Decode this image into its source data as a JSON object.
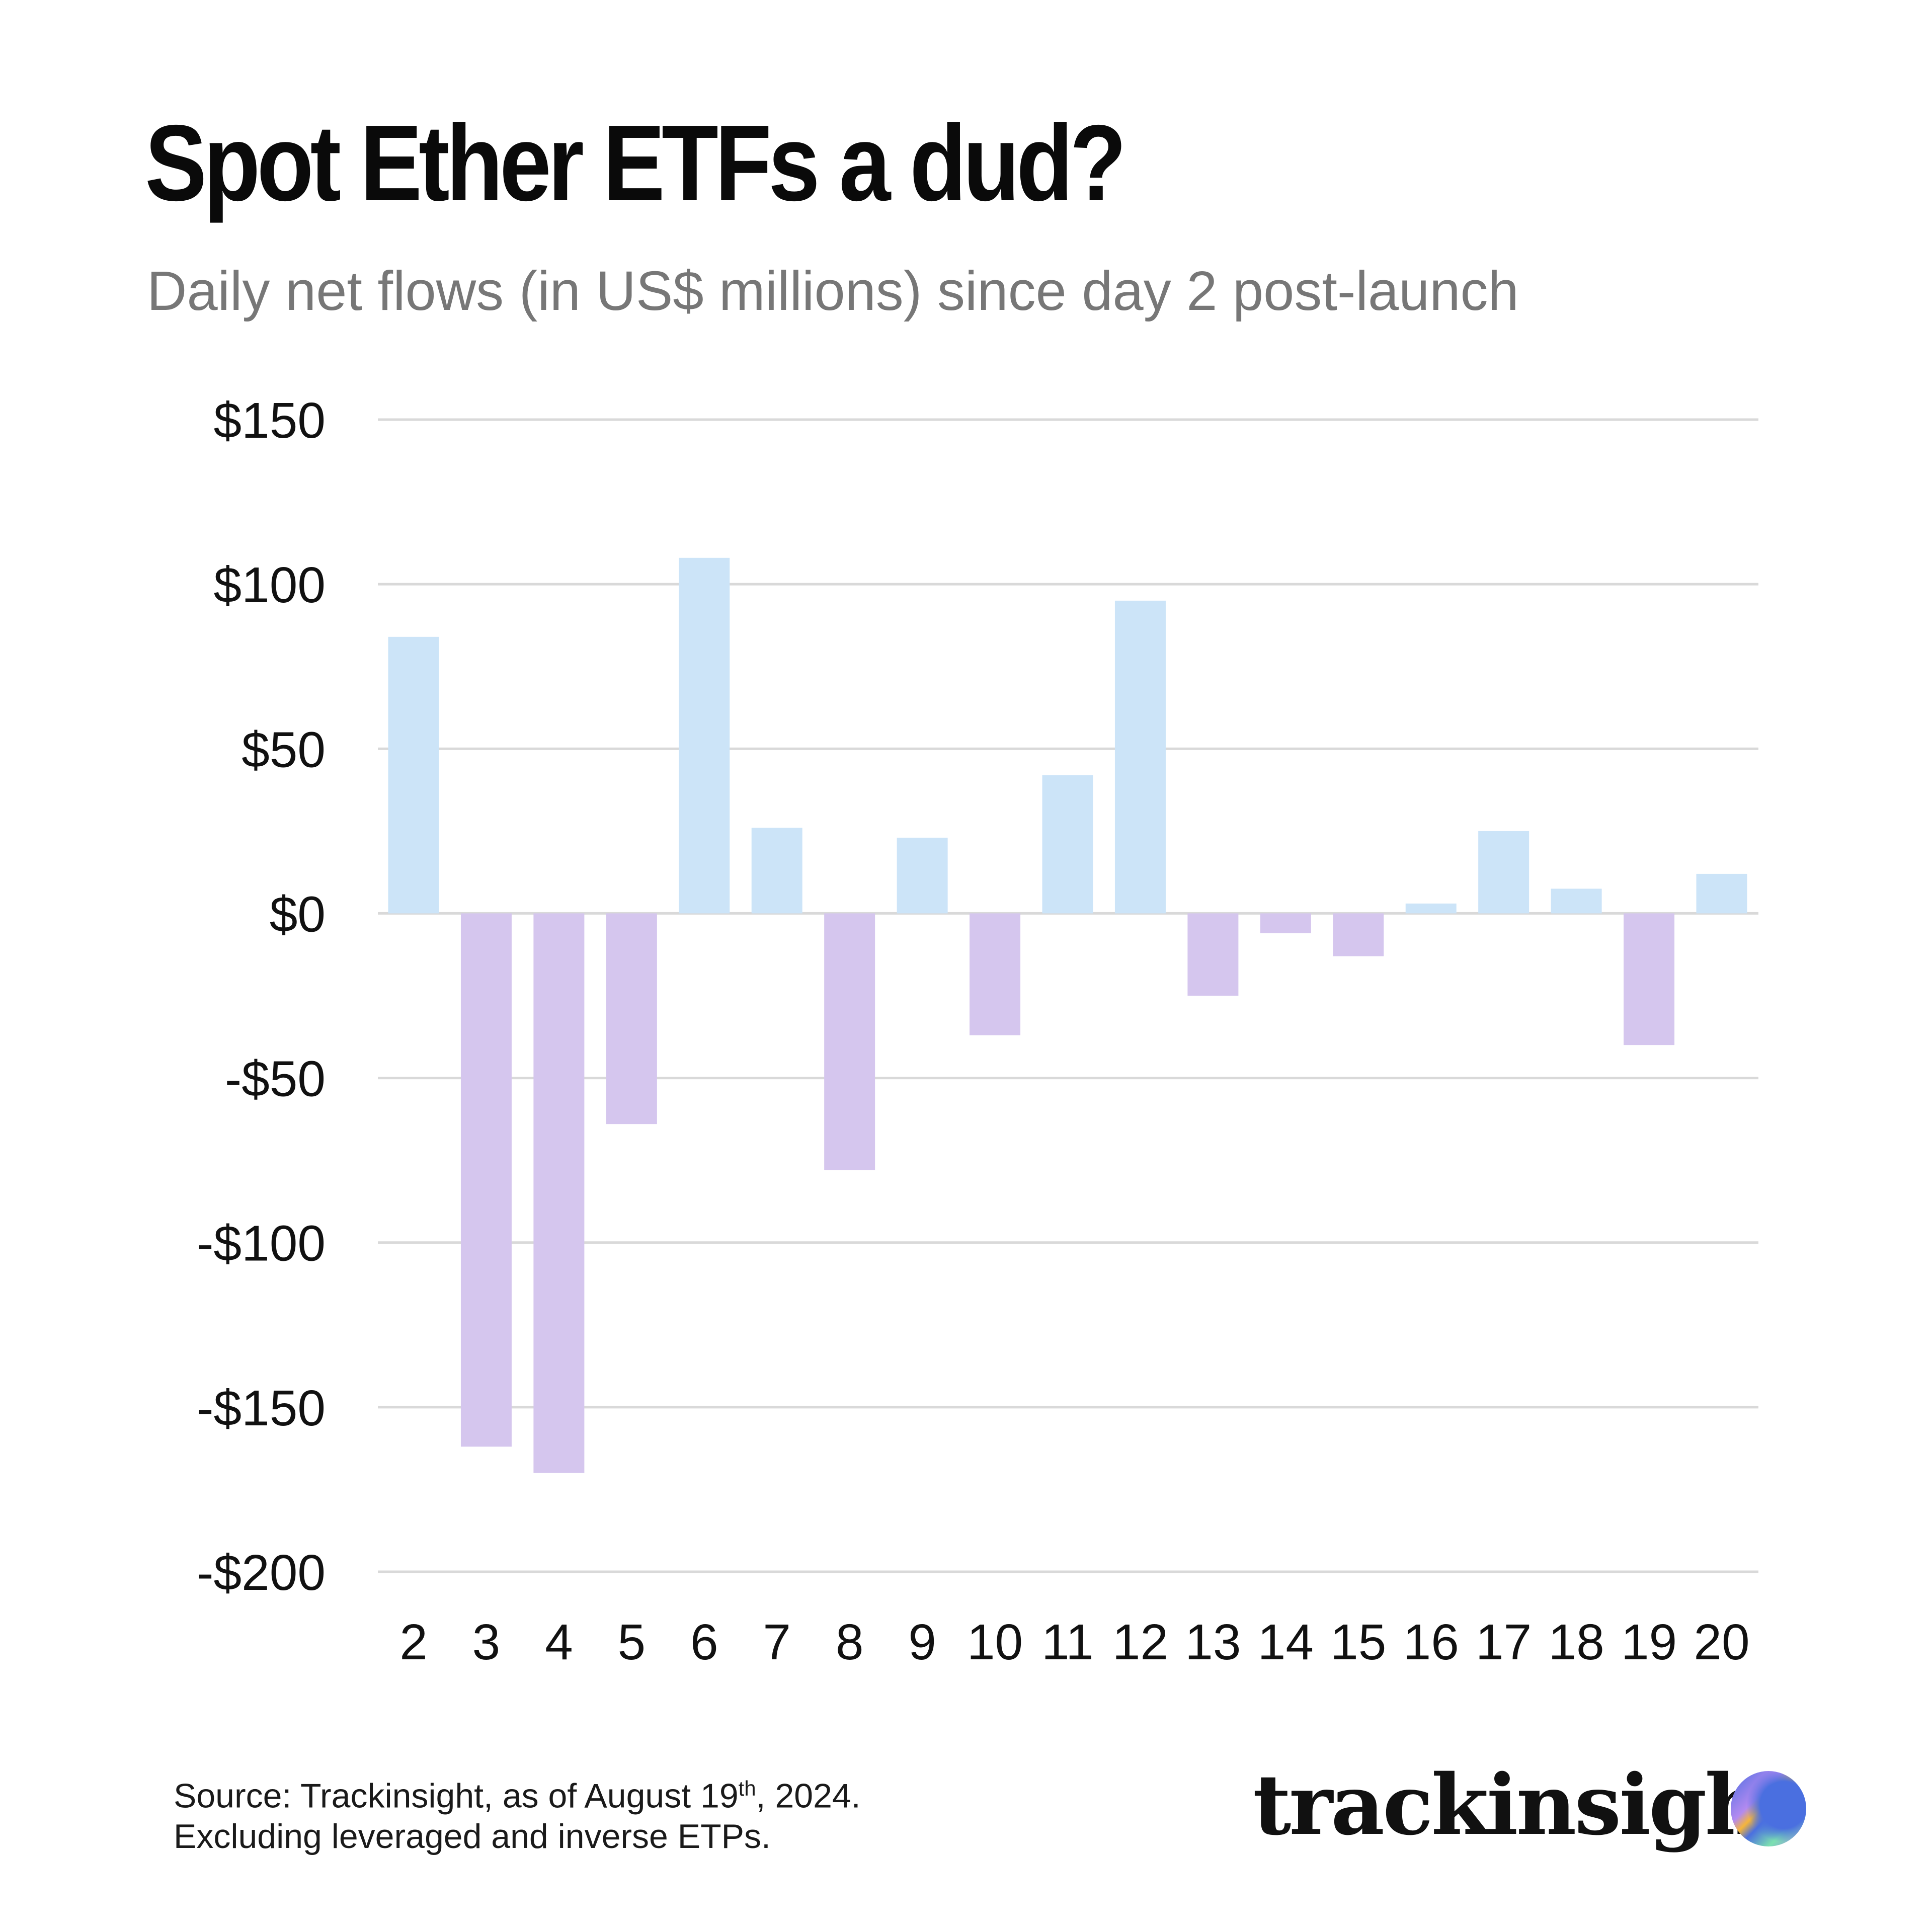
{
  "title": "Spot Ether ETFs a dud?",
  "subtitle": "Daily net flows (in US$ millions) since day 2 post-launch",
  "source": {
    "line1_prefix": "Source: Trackinsight, as of August 19",
    "line1_sup": "th",
    "line1_suffix": ", 2024.",
    "line2": "Excluding leveraged and inverse ETPs."
  },
  "logo": {
    "text": "trackinsight"
  },
  "colors": {
    "positive": "#cce4f8",
    "negative": "#d5c6ee",
    "grid": "#d9d9d9"
  },
  "chart_data": {
    "type": "bar",
    "title": "Spot Ether ETFs a dud?",
    "subtitle": "Daily net flows (in US$ millions) since day 2 post-launch",
    "xlabel": "",
    "ylabel": "",
    "categories": [
      "2",
      "3",
      "4",
      "5",
      "6",
      "7",
      "8",
      "9",
      "10",
      "11",
      "12",
      "13",
      "14",
      "15",
      "16",
      "17",
      "18",
      "19",
      "20"
    ],
    "values": [
      84,
      -162,
      -170,
      -64,
      108,
      26,
      -78,
      23,
      -37,
      42,
      95,
      -25,
      -6,
      -13,
      3,
      25,
      7.5,
      -40,
      12
    ],
    "ylim": [
      -200,
      150
    ],
    "yticks": [
      150,
      100,
      50,
      0,
      -50,
      -100,
      -150,
      -200
    ],
    "ytick_labels": [
      "$150",
      "$100",
      "$50",
      "$0",
      "-$50",
      "-$100",
      "-$150",
      "-$200"
    ],
    "grid": true,
    "legend": "none"
  }
}
